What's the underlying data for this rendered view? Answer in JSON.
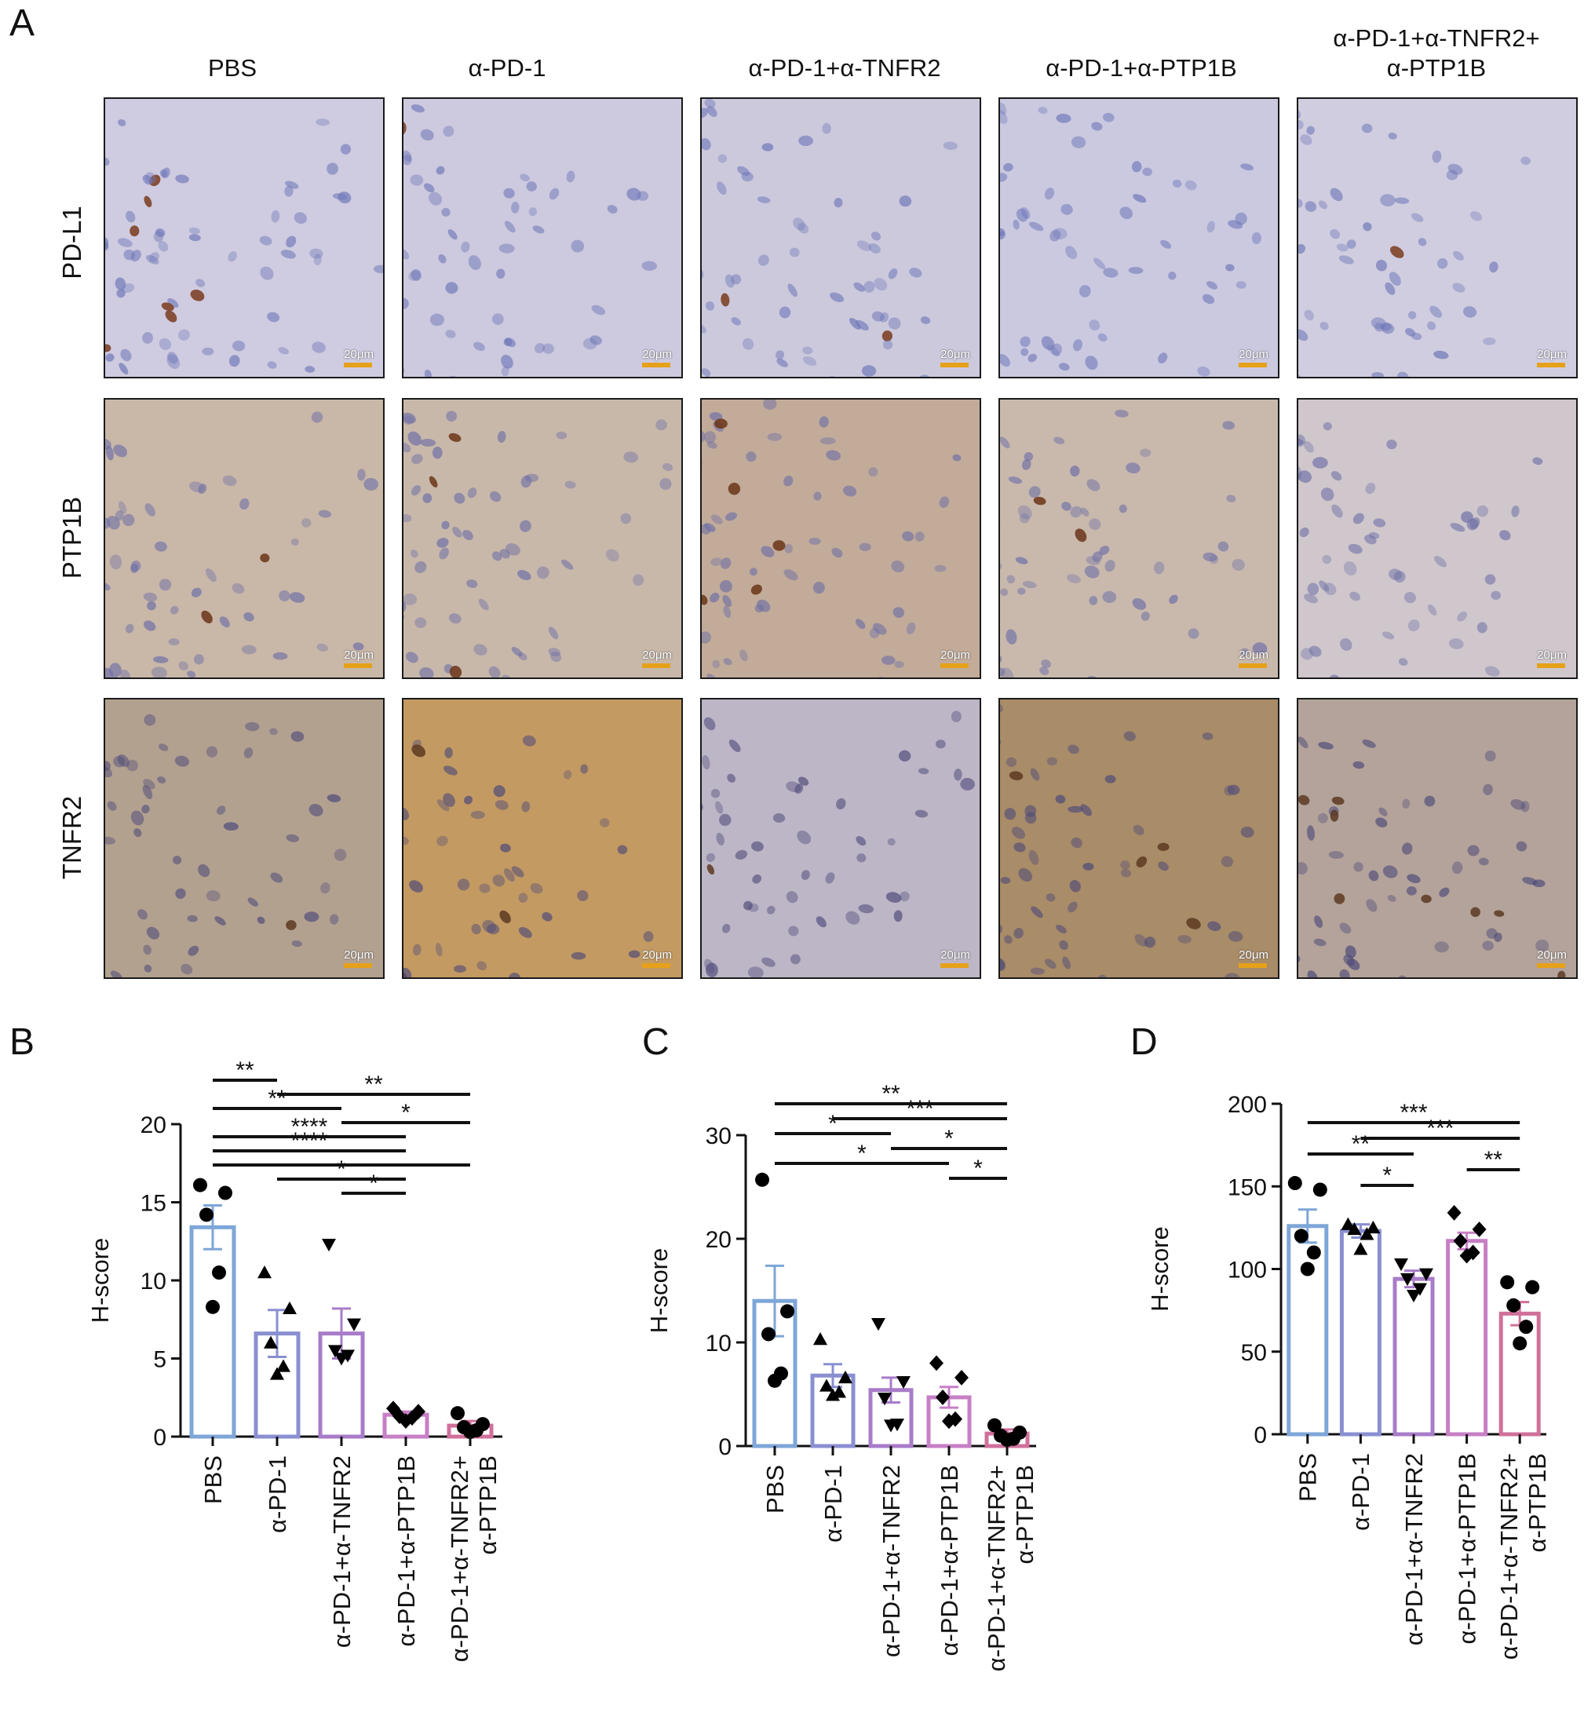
{
  "panel_letters": {
    "a": "A",
    "b": "B",
    "c": "C",
    "d": "D"
  },
  "columns": [
    "PBS",
    "α-PD-1",
    "α-PD-1+α-TNFR2",
    "α-PD-1+α-PTP1B",
    "α-PD-1+α-TNFR2+\nα-PTP1B"
  ],
  "rows": [
    "PD-L1",
    "PTP1B",
    "TNFR2"
  ],
  "scale_bar_label": "20μm",
  "stain_colors": {
    "PD-L1": {
      "bg": "#c9c6d9",
      "cell": "#6f78b8",
      "brown": "#7a3b1c"
    },
    "PTP1B": {
      "bg": "#c7b9b0",
      "cell": "#6d6fa6",
      "brown": "#6b3418"
    },
    "TNFR2": {
      "bg": "#b7a491",
      "cell": "#4d4a79",
      "brown": "#5d3a22"
    }
  },
  "chart_data": [
    {
      "panel": "B",
      "type": "bar",
      "ylabel": "H-score",
      "ylim": [
        0,
        20
      ],
      "yticks": [
        0,
        5,
        10,
        15,
        20
      ],
      "categories": [
        "PBS",
        "α-PD-1",
        "α-PD-1+α-TNFR2",
        "α-PD-1+α-PTP1B",
        "α-PD-1+α-TNFR2+\nα-PTP1B"
      ],
      "means": [
        13.4,
        6.6,
        6.6,
        1.4,
        0.7
      ],
      "sem": [
        1.4,
        1.5,
        1.6,
        0.2,
        0.3
      ],
      "points": [
        [
          16.1,
          15.6,
          14.2,
          10.5,
          8.3
        ],
        [
          10.5,
          8.2,
          6.0,
          4.5,
          4.0
        ],
        [
          12.3,
          7.2,
          5.5,
          5.2,
          5.0
        ],
        [
          1.8,
          1.6,
          1.3,
          1.2,
          1.0
        ],
        [
          1.5,
          0.8,
          0.6,
          0.4,
          0.3
        ]
      ],
      "markers": [
        "circle",
        "triangle-up",
        "triangle-down",
        "diamond",
        "circle"
      ],
      "colors": [
        "#7ea6d8",
        "#8a8fd1",
        "#a87cc9",
        "#c77fc5",
        "#d0709a"
      ],
      "significance": [
        {
          "from": 0,
          "to": 1,
          "label": "**"
        },
        {
          "from": 1,
          "to": 4,
          "label": "**"
        },
        {
          "from": 0,
          "to": 2,
          "label": "**"
        },
        {
          "from": 2,
          "to": 4,
          "label": "*"
        },
        {
          "from": 0,
          "to": 3,
          "label": "****"
        },
        {
          "from": 0,
          "to": 3,
          "label": "****"
        },
        {
          "from": 0,
          "to": 4,
          "label": ""
        },
        {
          "from": 1,
          "to": 3,
          "label": "*"
        },
        {
          "from": 2,
          "to": 3,
          "label": "*"
        }
      ]
    },
    {
      "panel": "C",
      "type": "bar",
      "ylabel": "H-score",
      "ylim": [
        0,
        30
      ],
      "yticks": [
        0,
        10,
        20,
        30
      ],
      "categories": [
        "PBS",
        "α-PD-1",
        "α-PD-1+α-TNFR2",
        "α-PD-1+α-PTP1B",
        "α-PD-1+α-TNFR2+\nα-PTP1B"
      ],
      "means": [
        14.0,
        6.8,
        5.4,
        4.7,
        1.2
      ],
      "sem": [
        3.4,
        1.1,
        1.2,
        1.0,
        0.4
      ],
      "points": [
        [
          25.7,
          13.0,
          10.8,
          7.0,
          6.3
        ],
        [
          10.3,
          6.6,
          5.8,
          5.2,
          4.9
        ],
        [
          11.8,
          6.2,
          4.6,
          2.1,
          2.0
        ],
        [
          8.0,
          6.6,
          4.7,
          2.6,
          2.4
        ],
        [
          2.0,
          1.3,
          1.0,
          0.7,
          0.6
        ]
      ],
      "markers": [
        "circle",
        "triangle-up",
        "triangle-down",
        "diamond",
        "circle"
      ],
      "colors": [
        "#7ea6d8",
        "#8a8fd1",
        "#a87cc9",
        "#c77fc5",
        "#d0709a"
      ],
      "significance": [
        {
          "from": 0,
          "to": 4,
          "label": "**"
        },
        {
          "from": 1,
          "to": 4,
          "label": "***"
        },
        {
          "from": 0,
          "to": 2,
          "label": "*"
        },
        {
          "from": 2,
          "to": 4,
          "label": "*"
        },
        {
          "from": 0,
          "to": 3,
          "label": "*"
        },
        {
          "from": 3,
          "to": 4,
          "label": "*"
        }
      ]
    },
    {
      "panel": "D",
      "type": "bar",
      "ylabel": "H-score",
      "ylim": [
        0,
        200
      ],
      "yticks": [
        0,
        50,
        100,
        150,
        200
      ],
      "categories": [
        "PBS",
        "α-PD-1",
        "α-PD-1+α-TNFR2",
        "α-PD-1+α-PTP1B",
        "α-PD-1+α-TNFR2+\nα-PTP1B"
      ],
      "means": [
        126,
        123,
        94,
        117,
        73
      ],
      "sem": [
        10,
        4,
        5,
        5,
        7
      ],
      "points": [
        [
          152,
          148,
          120,
          110,
          100
        ],
        [
          127,
          125,
          124,
          121,
          112
        ],
        [
          103,
          97,
          94,
          88,
          84
        ],
        [
          134,
          124,
          117,
          110,
          108
        ],
        [
          92,
          89,
          78,
          65,
          55
        ]
      ],
      "markers": [
        "circle",
        "triangle-up",
        "triangle-down",
        "diamond",
        "circle"
      ],
      "colors": [
        "#7ea6d8",
        "#8a8fd1",
        "#a87cc9",
        "#c77fc5",
        "#d0709a"
      ],
      "significance": [
        {
          "from": 0,
          "to": 4,
          "label": "***"
        },
        {
          "from": 1,
          "to": 4,
          "label": "***"
        },
        {
          "from": 0,
          "to": 2,
          "label": "**"
        },
        {
          "from": 3,
          "to": 4,
          "label": "**"
        },
        {
          "from": 1,
          "to": 2,
          "label": "*"
        }
      ]
    }
  ]
}
